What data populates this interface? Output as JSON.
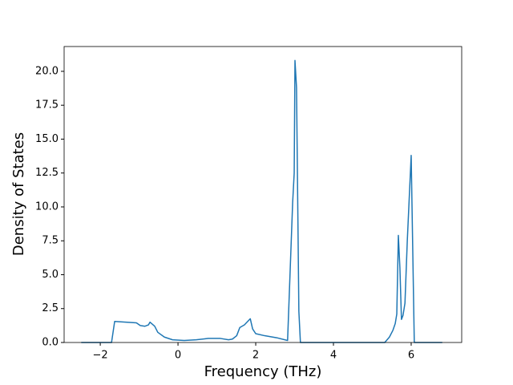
{
  "chart_data": {
    "type": "line",
    "xlabel": "Frequency (THz)",
    "ylabel": "Density of States",
    "x": [
      -2.49,
      -1.71,
      -1.63,
      -1.07,
      -0.97,
      -0.85,
      -0.76,
      -0.72,
      -0.6,
      -0.52,
      -0.35,
      -0.14,
      0.16,
      0.47,
      0.78,
      1.09,
      1.3,
      1.4,
      1.51,
      1.59,
      1.71,
      1.86,
      1.92,
      2.0,
      2.23,
      2.54,
      2.82,
      2.95,
      2.99,
      3.01,
      3.05,
      3.11,
      3.15,
      3.67,
      5.32,
      5.44,
      5.53,
      5.59,
      5.63,
      5.67,
      5.71,
      5.75,
      5.79,
      5.84,
      5.9,
      6.0,
      6.08,
      6.8
    ],
    "series": [
      {
        "color": "#1f77b4",
        "values": [
          0,
          0,
          1.55,
          1.45,
          1.25,
          1.2,
          1.3,
          1.5,
          1.2,
          0.75,
          0.4,
          0.2,
          0.15,
          0.2,
          0.3,
          0.3,
          0.2,
          0.25,
          0.5,
          1.1,
          1.3,
          1.75,
          1.0,
          0.65,
          0.5,
          0.35,
          0.15,
          10.3,
          12.5,
          20.8,
          18.8,
          2.3,
          0,
          0,
          0,
          0.4,
          0.9,
          1.4,
          2.1,
          7.9,
          5.5,
          1.7,
          2.0,
          2.9,
          7.5,
          13.8,
          0,
          0
        ]
      }
    ],
    "xlim": [
      -2.93,
      7.3
    ],
    "ylim": [
      0,
      21.83
    ],
    "xticks": [
      {
        "value": -2,
        "label": "−2"
      },
      0,
      2,
      4,
      6
    ],
    "yticks": [
      {
        "value": 0,
        "label": "0.0"
      },
      {
        "value": 2.5,
        "label": "2.5"
      },
      {
        "value": 5,
        "label": "5.0"
      },
      {
        "value": 7.5,
        "label": "7.5"
      },
      {
        "value": 10,
        "label": "10.0"
      },
      {
        "value": 12.5,
        "label": "12.5"
      },
      {
        "value": 15,
        "label": "15.0"
      },
      {
        "value": 17.5,
        "label": "17.5"
      },
      {
        "value": 20,
        "label": "20.0"
      }
    ],
    "grid": false
  }
}
